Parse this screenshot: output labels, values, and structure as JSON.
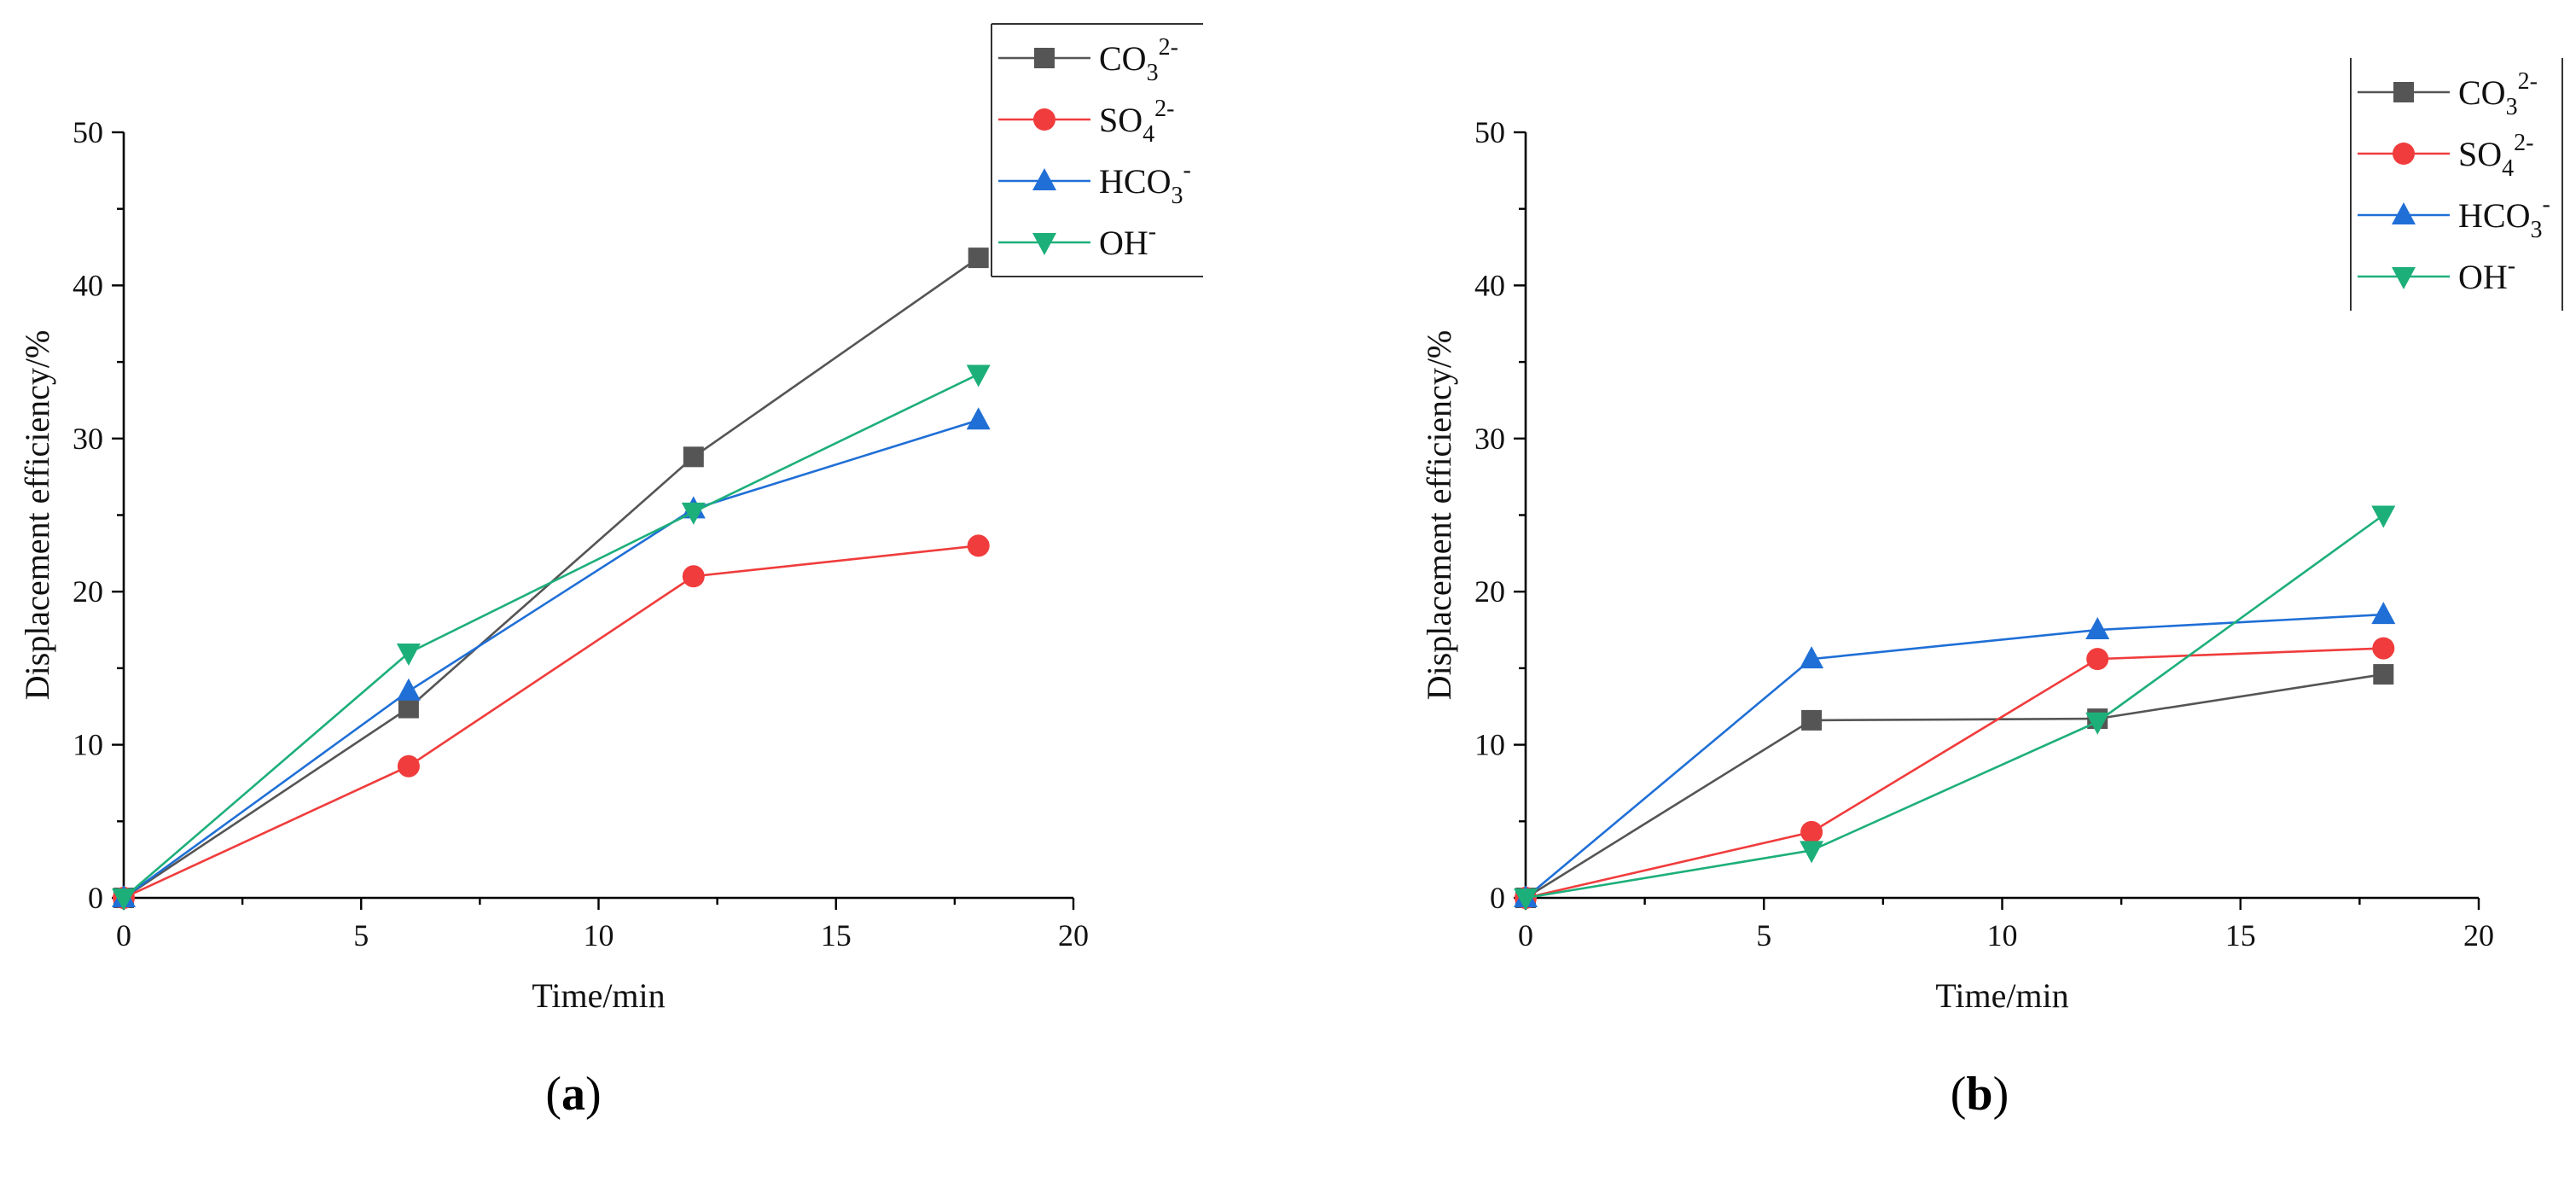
{
  "chart_data": [
    {
      "type": "line",
      "panel_label_parts": [
        "(",
        "a",
        ")"
      ],
      "xlabel": "Time/min",
      "ylabel": "Displacement efficiency/%",
      "xlim": [
        0,
        20
      ],
      "ylim": [
        0,
        50
      ],
      "x_ticks": [
        "0",
        "5",
        "10",
        "15",
        "20"
      ],
      "y_ticks": [
        "0",
        "10",
        "20",
        "30",
        "40",
        "50"
      ],
      "legend_position": "top-right",
      "x": [
        0,
        6,
        12,
        18
      ],
      "series": [
        {
          "name": "CO3 2-",
          "label_base": "CO",
          "label_sub": "3",
          "label_sup": "2-",
          "marker": "square",
          "color": "#555555",
          "values": [
            0,
            12.4,
            28.8,
            41.8
          ]
        },
        {
          "name": "SO4 2-",
          "label_base": "SO",
          "label_sub": "4",
          "label_sup": "2-",
          "marker": "circle",
          "color": "#f03c3c",
          "values": [
            0,
            8.6,
            21.0,
            23.0
          ]
        },
        {
          "name": "HCO3 -",
          "label_base": "HCO",
          "label_sub": "3",
          "label_sup": "-",
          "marker": "triangle-up",
          "color": "#1f6fd6",
          "values": [
            0,
            13.5,
            25.4,
            31.2
          ]
        },
        {
          "name": "OH -",
          "label_base": "OH",
          "label_sub": "",
          "label_sup": "-",
          "marker": "triangle-down",
          "color": "#1daf7a",
          "values": [
            0,
            16.0,
            25.2,
            34.2
          ]
        }
      ]
    },
    {
      "type": "line",
      "panel_label_parts": [
        "(",
        "b",
        ")"
      ],
      "xlabel": "Time/min",
      "ylabel": "Displacement efficiency/%",
      "xlim": [
        0,
        20
      ],
      "ylim": [
        0,
        50
      ],
      "x_ticks": [
        "0",
        "5",
        "10",
        "15",
        "20"
      ],
      "y_ticks": [
        "0",
        "10",
        "20",
        "30",
        "40",
        "50"
      ],
      "legend_position": "top-right",
      "x": [
        0,
        6,
        12,
        18
      ],
      "series": [
        {
          "name": "CO3 2-",
          "label_base": "CO",
          "label_sub": "3",
          "label_sup": "2-",
          "marker": "square",
          "color": "#555555",
          "values": [
            0,
            11.6,
            11.7,
            14.6
          ]
        },
        {
          "name": "SO4 2-",
          "label_base": "SO",
          "label_sub": "4",
          "label_sup": "2-",
          "marker": "circle",
          "color": "#f03c3c",
          "values": [
            0,
            4.3,
            15.6,
            16.3
          ]
        },
        {
          "name": "HCO3 -",
          "label_base": "HCO",
          "label_sub": "3",
          "label_sup": "-",
          "marker": "triangle-up",
          "color": "#1f6fd6",
          "values": [
            0,
            15.6,
            17.5,
            18.5
          ]
        },
        {
          "name": "OH -",
          "label_base": "OH",
          "label_sub": "",
          "label_sup": "-",
          "marker": "triangle-down",
          "color": "#1daf7a",
          "values": [
            0,
            3.1,
            11.5,
            25.0
          ]
        }
      ]
    }
  ]
}
